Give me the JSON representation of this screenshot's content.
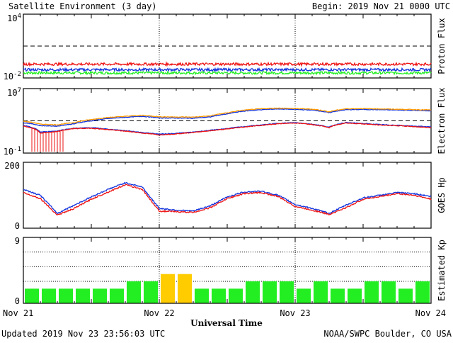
{
  "header": {
    "title": "Satellite Environment (3 day)",
    "begin": "Begin:  2019 Nov 21 0000 UTC"
  },
  "footer": {
    "updated": "Updated 2019 Nov 23 23:56:03 UTC",
    "credit": "NOAA/SWPC Boulder, CO USA"
  },
  "colors": {
    "red": "#ee1111",
    "blue": "#1133dd",
    "green": "#22ee22",
    "orange": "#ff9900",
    "kp_green": "#22ee22",
    "kp_yellow": "#ffcc00"
  },
  "chart_data": [
    {
      "type": "line",
      "name": "proton-flux",
      "ylabel": "Proton Flux",
      "yscale": "log",
      "ylim": [
        0.01,
        10000
      ],
      "ytick_labels": [
        {
          "base": "10",
          "exp": "4",
          "value": 10000
        },
        {
          "base": "10",
          "exp": "-2",
          "value": 0.01
        }
      ],
      "threshold": 10,
      "x": [
        0,
        12,
        24,
        36,
        48,
        60,
        72
      ],
      "series": [
        {
          "color": "red",
          "values": [
            0.2,
            0.2,
            0.2,
            0.2,
            0.2,
            0.2,
            0.2
          ]
        },
        {
          "color": "blue",
          "values": [
            0.06,
            0.06,
            0.06,
            0.06,
            0.06,
            0.06,
            0.06
          ]
        },
        {
          "color": "green",
          "values": [
            0.03,
            0.03,
            0.03,
            0.03,
            0.03,
            0.03,
            0.03
          ]
        }
      ]
    },
    {
      "type": "line",
      "name": "electron-flux",
      "ylabel": "Electron Flux",
      "yscale": "log",
      "ylim": [
        0.1,
        10000000
      ],
      "ytick_labels": [
        {
          "base": "10",
          "exp": "7",
          "value": 10000000
        },
        {
          "base": "10",
          "exp": "-1",
          "value": 0.1
        }
      ],
      "threshold": 1000,
      "x": [
        0,
        3,
        6,
        9,
        12,
        15,
        18,
        21,
        24,
        27,
        30,
        33,
        36,
        39,
        42,
        45,
        48,
        51,
        54,
        57,
        60,
        63,
        66,
        69,
        72
      ],
      "series": [
        {
          "color": "blue",
          "values": [
            600,
            250,
            220,
            420,
            1000,
            1900,
            2700,
            3600,
            2300,
            2200,
            2100,
            3000,
            7000,
            16000,
            24000,
            30000,
            26000,
            22000,
            10000,
            24000,
            26000,
            24000,
            22000,
            20000,
            17000
          ]
        },
        {
          "color": "orange",
          "values": [
            900,
            380,
            320,
            600,
            1400,
            2600,
            3600,
            4800,
            3200,
            3000,
            2900,
            4000,
            9500,
            21000,
            31000,
            38000,
            33000,
            28000,
            13000,
            31000,
            33000,
            30000,
            27000,
            25000,
            22000
          ]
        },
        {
          "color": "blue",
          "values": [
            260,
            40,
            55,
            120,
            140,
            90,
            60,
            35,
            22,
            28,
            40,
            65,
            110,
            190,
            300,
            480,
            600,
            380,
            160,
            600,
            460,
            340,
            280,
            220,
            180
          ]
        },
        {
          "color": "red",
          "values": [
            220,
            30,
            45,
            110,
            120,
            80,
            52,
            30,
            18,
            24,
            36,
            58,
            95,
            170,
            270,
            430,
            540,
            340,
            140,
            540,
            410,
            300,
            250,
            190,
            140
          ]
        }
      ]
    },
    {
      "type": "line",
      "name": "goes-hp",
      "ylabel": "GOES Hp",
      "ylim": [
        0,
        200
      ],
      "ytick_labels": [
        "200",
        "0"
      ],
      "x": [
        0,
        3,
        6,
        9,
        12,
        15,
        18,
        21,
        24,
        27,
        30,
        33,
        36,
        39,
        42,
        45,
        48,
        51,
        54,
        57,
        60,
        63,
        66,
        69,
        72
      ],
      "series": [
        {
          "color": "blue",
          "values": [
            118,
            100,
            45,
            70,
            95,
            118,
            138,
            125,
            60,
            55,
            52,
            68,
            95,
            110,
            112,
            100,
            72,
            60,
            45,
            70,
            92,
            100,
            108,
            105,
            96
          ]
        },
        {
          "color": "red",
          "values": [
            108,
            90,
            40,
            60,
            88,
            110,
            132,
            118,
            52,
            50,
            48,
            62,
            90,
            105,
            108,
            96,
            66,
            55,
            42,
            62,
            88,
            96,
            105,
            100,
            88
          ]
        }
      ]
    },
    {
      "type": "bar",
      "name": "estimated-kp",
      "ylabel": "Estimated Kp",
      "ylim": [
        0,
        9
      ],
      "ytick_labels": [
        "9",
        "0"
      ],
      "values": [
        2,
        2,
        2,
        2,
        2,
        2,
        3,
        3,
        4,
        4,
        2,
        2,
        2,
        3,
        3,
        3,
        2,
        3,
        2,
        2,
        3,
        3,
        2,
        3
      ],
      "colors": [
        "green",
        "green",
        "green",
        "green",
        "green",
        "green",
        "green",
        "green",
        "yellow",
        "yellow",
        "green",
        "green",
        "green",
        "green",
        "green",
        "green",
        "green",
        "green",
        "green",
        "green",
        "green",
        "green",
        "green",
        "green"
      ]
    }
  ],
  "xaxis": {
    "label": "Universal Time",
    "ticks": [
      "Nov 21",
      "Nov 22",
      "Nov 23",
      "Nov 24"
    ],
    "range_hours": [
      0,
      72
    ]
  }
}
